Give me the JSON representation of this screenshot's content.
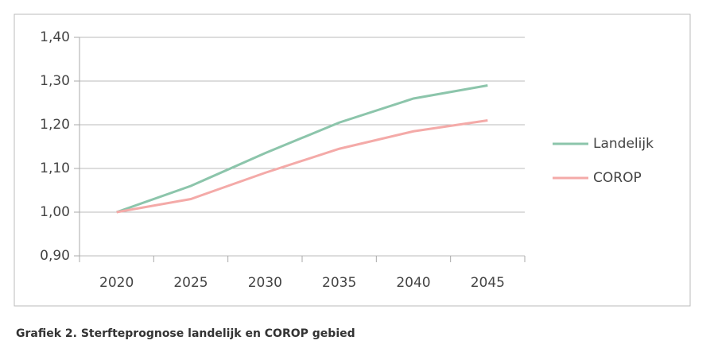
{
  "chart_data": {
    "type": "line",
    "caption": "Grafiek 2. Sterfteprognose landelijk en COROP gebied",
    "categories": [
      "2020",
      "2025",
      "2030",
      "2035",
      "2040",
      "2045"
    ],
    "series": [
      {
        "name": "Landelijk",
        "color": "#8cc5ab",
        "values": [
          1.0,
          1.06,
          1.135,
          1.205,
          1.26,
          1.29
        ]
      },
      {
        "name": "COROP",
        "color": "#f4aaa8",
        "values": [
          1.0,
          1.03,
          1.09,
          1.145,
          1.185,
          1.21
        ]
      }
    ],
    "ylim": [
      0.9,
      1.4
    ],
    "yticks": [
      {
        "value": 0.9,
        "label": "0,90"
      },
      {
        "value": 1.0,
        "label": "1,00"
      },
      {
        "value": 1.1,
        "label": "1,10"
      },
      {
        "value": 1.2,
        "label": "1,20"
      },
      {
        "value": 1.3,
        "label": "1,30"
      },
      {
        "value": 1.4,
        "label": "1,40"
      }
    ],
    "grid": true,
    "legend": "right"
  }
}
